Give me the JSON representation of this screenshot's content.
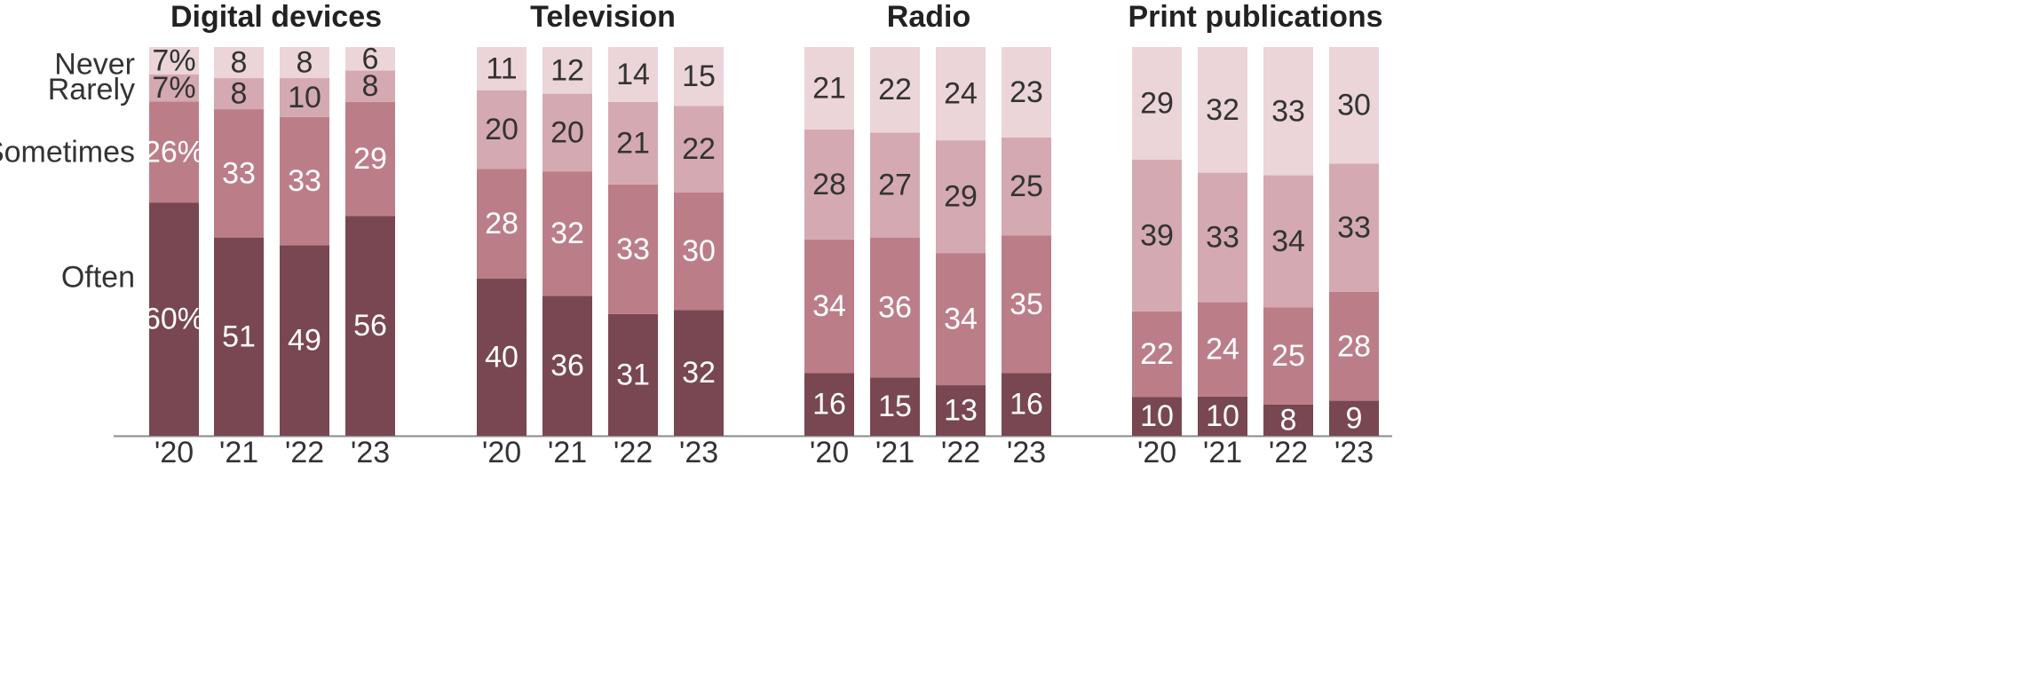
{
  "chart_data": {
    "type": "bar",
    "stacked": true,
    "percent_normalized": true,
    "categories": [
      "'20",
      "'21",
      "'22",
      "'23"
    ],
    "segments": [
      "Often",
      "Sometimes",
      "Rarely",
      "Never"
    ],
    "segment_colors": {
      "Often": "#784751",
      "Sometimes": "#bb7e89",
      "Rarely": "#d4a9b1",
      "Never": "#ebd5d9"
    },
    "legend": {
      "Never": "Never",
      "Rarely": "Rarely",
      "Sometimes": "Sometimes",
      "Often": "Often"
    },
    "panels": [
      {
        "title": "Digital devices",
        "values": {
          "Often": [
            60,
            51,
            49,
            56
          ],
          "Sometimes": [
            26,
            33,
            33,
            29
          ],
          "Rarely": [
            7,
            8,
            10,
            8
          ],
          "Never": [
            7,
            8,
            8,
            6
          ]
        },
        "labels": {
          "Often": [
            "60%",
            "51",
            "49",
            "56"
          ],
          "Sometimes": [
            "26%",
            "33",
            "33",
            "29"
          ],
          "Rarely": [
            "7%",
            "8",
            "10",
            "8"
          ],
          "Never": [
            "7%",
            "8",
            "8",
            "6"
          ]
        }
      },
      {
        "title": "Television",
        "values": {
          "Often": [
            40,
            36,
            31,
            32
          ],
          "Sometimes": [
            28,
            32,
            33,
            30
          ],
          "Rarely": [
            20,
            20,
            21,
            22
          ],
          "Never": [
            11,
            12,
            14,
            15
          ]
        },
        "labels": {
          "Often": [
            "40",
            "36",
            "31",
            "32"
          ],
          "Sometimes": [
            "28",
            "32",
            "33",
            "30"
          ],
          "Rarely": [
            "20",
            "20",
            "21",
            "22"
          ],
          "Never": [
            "11",
            "12",
            "14",
            "15"
          ]
        }
      },
      {
        "title": "Radio",
        "values": {
          "Often": [
            16,
            15,
            13,
            16
          ],
          "Sometimes": [
            34,
            36,
            34,
            35
          ],
          "Rarely": [
            28,
            27,
            29,
            25
          ],
          "Never": [
            21,
            22,
            24,
            23
          ]
        },
        "labels": {
          "Often": [
            "16",
            "15",
            "13",
            "16"
          ],
          "Sometimes": [
            "34",
            "36",
            "34",
            "35"
          ],
          "Rarely": [
            "28",
            "27",
            "29",
            "25"
          ],
          "Never": [
            "21",
            "22",
            "24",
            "23"
          ]
        }
      },
      {
        "title": "Print publications",
        "values": {
          "Often": [
            10,
            10,
            8,
            9
          ],
          "Sometimes": [
            22,
            24,
            25,
            28
          ],
          "Rarely": [
            39,
            33,
            34,
            33
          ],
          "Never": [
            29,
            32,
            33,
            30
          ]
        },
        "labels": {
          "Often": [
            "10",
            "10",
            "8",
            "9"
          ],
          "Sometimes": [
            "22",
            "24",
            "25",
            "28"
          ],
          "Rarely": [
            "39",
            "33",
            "34",
            "33"
          ],
          "Never": [
            "29",
            "32",
            "33",
            "30"
          ]
        }
      }
    ]
  }
}
